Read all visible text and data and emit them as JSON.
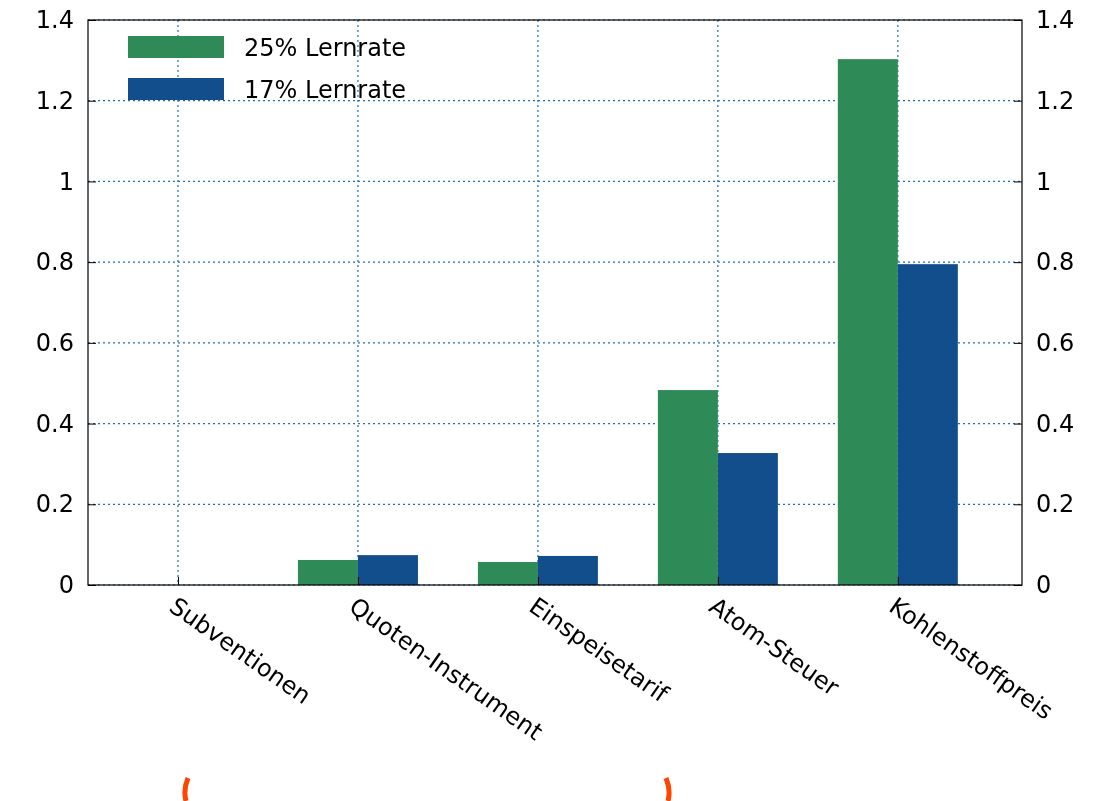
{
  "chart_data": {
    "type": "bar",
    "categories": [
      "Subventionen",
      "Quoten-Instrument",
      "Einspeisetarif",
      "Atom-Steuer",
      "Kohlenstoffpreis"
    ],
    "series": [
      {
        "name": "25% Lernrate",
        "color": "#2e8b57",
        "values": [
          0,
          0.062,
          0.057,
          0.483,
          1.303
        ]
      },
      {
        "name": "17% Lernrate",
        "color": "#114e8b",
        "values": [
          0,
          0.074,
          0.072,
          0.327,
          0.795
        ]
      }
    ],
    "ylim": [
      0,
      1.4
    ],
    "yticks": [
      {
        "value": 0,
        "label": "0"
      },
      {
        "value": 0.2,
        "label": "0.2"
      },
      {
        "value": 0.4,
        "label": "0.4"
      },
      {
        "value": 0.6,
        "label": "0.6"
      },
      {
        "value": 0.8,
        "label": "0.8"
      },
      {
        "value": 1,
        "label": "1"
      },
      {
        "value": 1.2,
        "label": "1.2"
      },
      {
        "value": 1.4,
        "label": "1.4"
      }
    ],
    "y2lim": [
      0,
      1.4
    ],
    "y2ticks": [
      {
        "value": 0,
        "label": "0"
      },
      {
        "value": 0.2,
        "label": "0.2"
      },
      {
        "value": 0.4,
        "label": "0.4"
      },
      {
        "value": 0.6,
        "label": "0.6"
      },
      {
        "value": 0.8,
        "label": "0.8"
      },
      {
        "value": 1,
        "label": "1"
      },
      {
        "value": 1.2,
        "label": "1.2"
      },
      {
        "value": 1.4,
        "label": "1.4"
      }
    ],
    "grid": true,
    "legend": "top left"
  }
}
